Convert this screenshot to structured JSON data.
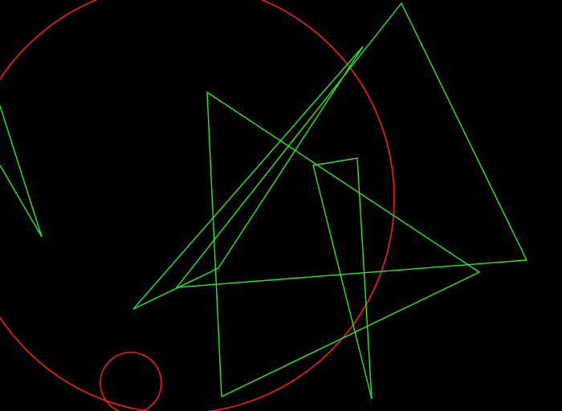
{
  "scene": {
    "background_color": "#000000",
    "circle_color": "#ff1a1a",
    "polygon_color": "#22ee22",
    "shapes": [
      {
        "name": "large-red-circle",
        "kind": "circle"
      },
      {
        "name": "small-red-circle",
        "kind": "circle"
      },
      {
        "name": "left-edge-triangle",
        "kind": "polygon"
      },
      {
        "name": "top-right-triangle",
        "kind": "polygon"
      },
      {
        "name": "center-large-triangle",
        "kind": "polygon"
      },
      {
        "name": "thin-sliver-triangle",
        "kind": "polygon"
      },
      {
        "name": "narrow-vertical-triangle",
        "kind": "polygon"
      }
    ]
  }
}
